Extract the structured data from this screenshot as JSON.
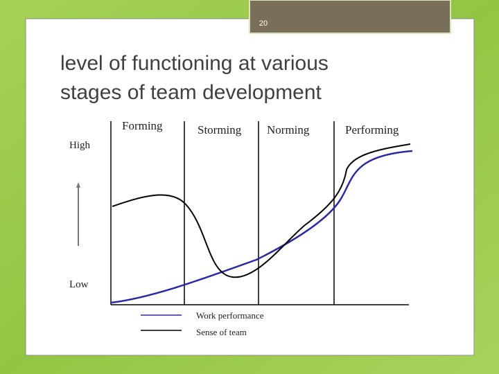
{
  "slide_number": "20",
  "title": [
    "level of functioning at various",
    "stages of team  development"
  ],
  "stages": [
    "Forming",
    "Storming",
    "Norming",
    "Performing"
  ],
  "axis_labels": {
    "high": "High",
    "low": "Low"
  },
  "legend": [
    "Work performance",
    "Sense of team"
  ]
}
